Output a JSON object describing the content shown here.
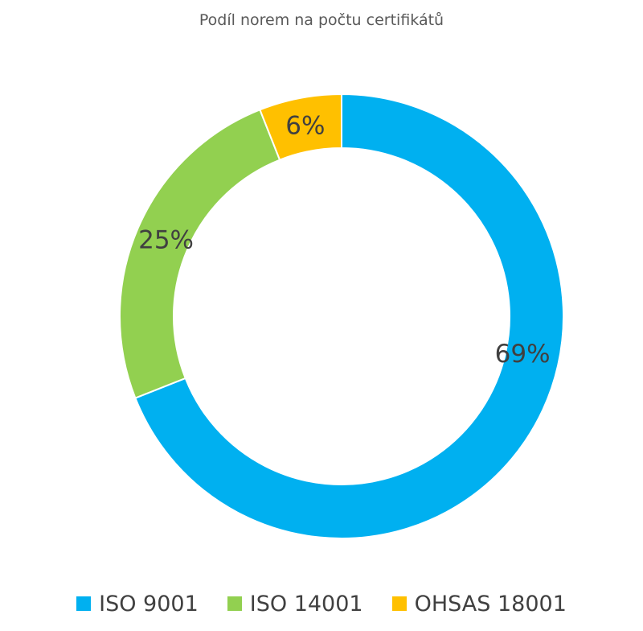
{
  "chart_data": {
    "type": "pie",
    "title": "Podíl norem na počtu certifikátů",
    "categories": [
      "ISO 9001",
      "ISO 14001",
      "OHSAS 18001"
    ],
    "values": [
      69,
      25,
      6
    ],
    "data_labels": [
      "69%",
      "25%",
      "6%"
    ],
    "colors": [
      "#00B0F0",
      "#92D050",
      "#FFC000"
    ],
    "legend_position": "bottom",
    "style": "donut"
  }
}
